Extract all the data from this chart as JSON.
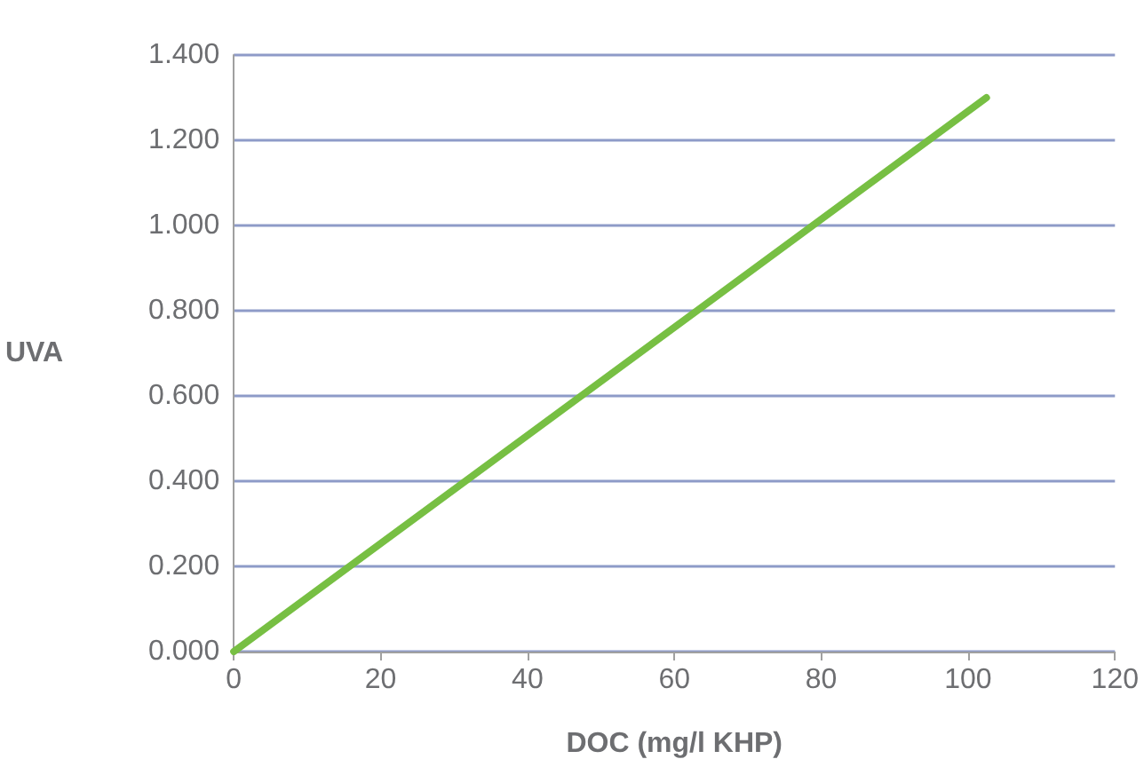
{
  "chart_data": {
    "type": "line",
    "xlabel": "DOC (mg/l KHP)",
    "ylabel": "UVA",
    "x": [
      0,
      102.5
    ],
    "series": [
      {
        "color": "#77bf43",
        "values": [
          0,
          1.3
        ]
      }
    ],
    "xlim": [
      0,
      120
    ],
    "xticks": [
      0,
      20,
      40,
      60,
      80,
      100,
      120
    ],
    "ylim": [
      0,
      1.4
    ],
    "yticks": [
      {
        "value": 0,
        "label": "0.000"
      },
      {
        "value": 0.2,
        "label": "0.200"
      },
      {
        "value": 0.4,
        "label": "0.400"
      },
      {
        "value": 0.6,
        "label": "0.600"
      },
      {
        "value": 0.8,
        "label": "0.800"
      },
      {
        "value": 1.0,
        "label": "1.000"
      },
      {
        "value": 1.2,
        "label": "1.200"
      },
      {
        "value": 1.4,
        "label": "1.400"
      }
    ],
    "grid": "y",
    "marker": "none",
    "line_style": "solid"
  }
}
